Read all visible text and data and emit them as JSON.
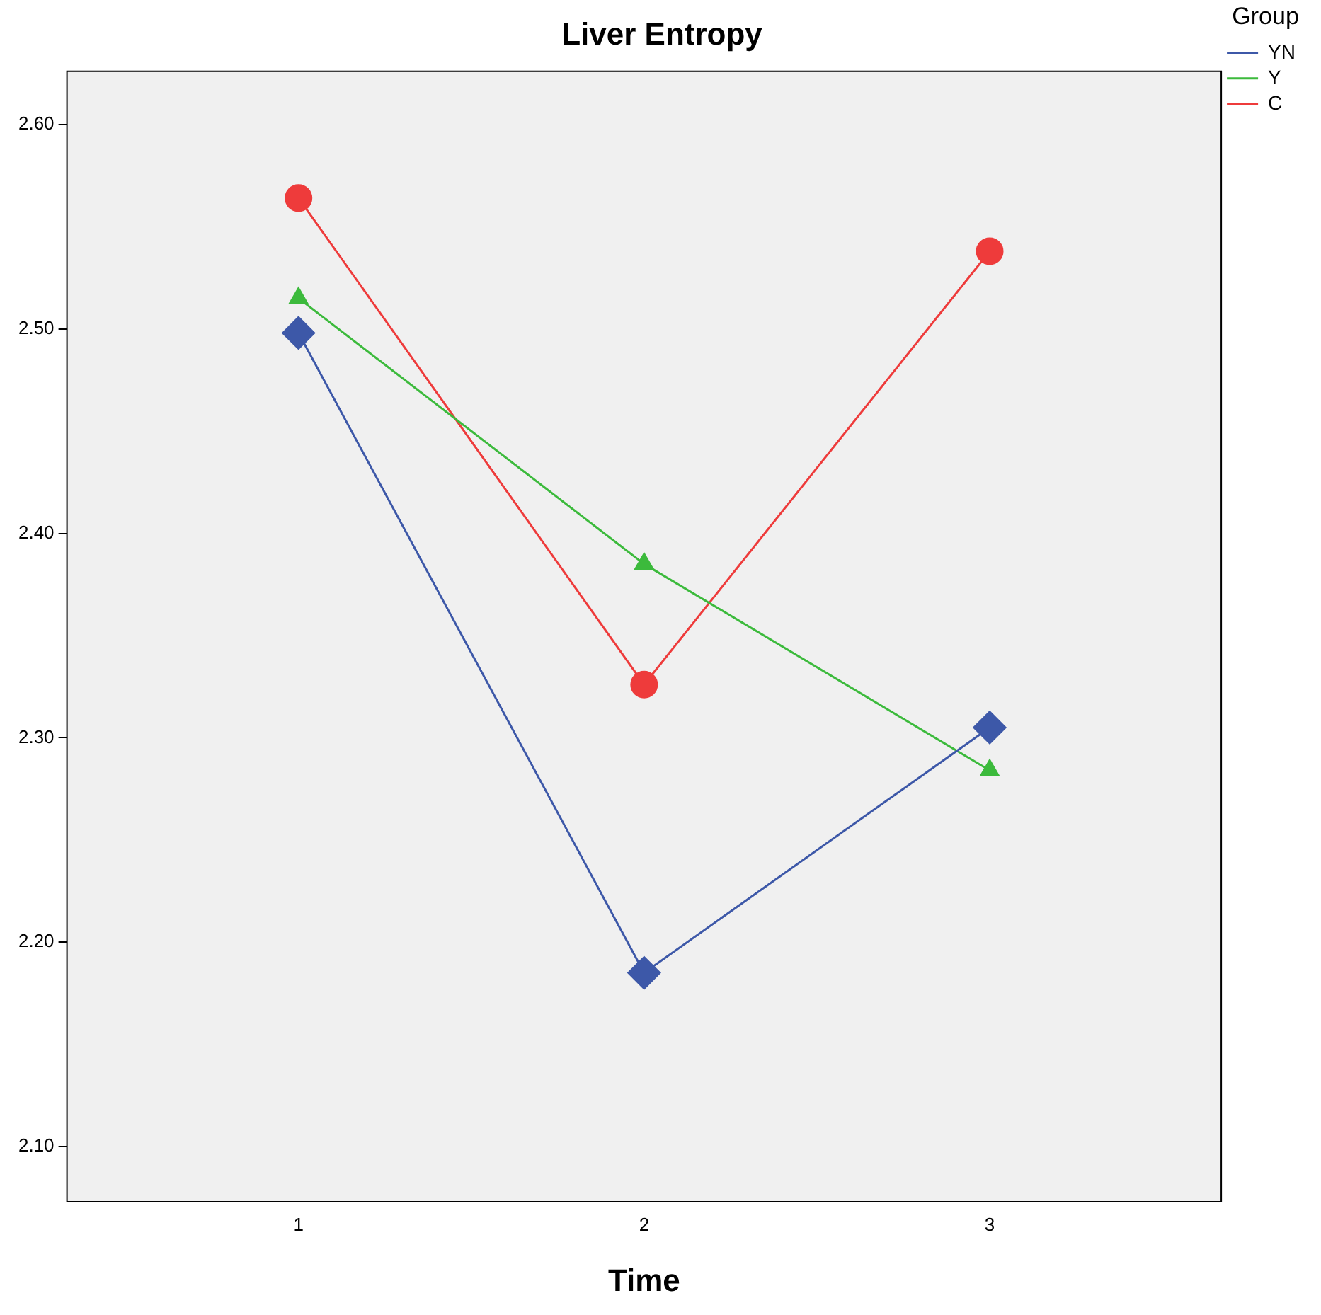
{
  "chart_data": {
    "type": "line",
    "title": "Liver Entropy",
    "xlabel": "Time",
    "legend_title": "Group",
    "legend": "top right",
    "grid": false,
    "x": [
      1,
      2,
      3
    ],
    "xlim": [
      0.33,
      3.67
    ],
    "xticks": [
      1,
      2,
      3
    ],
    "ylim": [
      2.073,
      2.626
    ],
    "yticks": [
      {
        "value": 2.1,
        "label": "2.10"
      },
      {
        "value": 2.2,
        "label": "2.20"
      },
      {
        "value": 2.3,
        "label": "2.30"
      },
      {
        "value": 2.4,
        "label": "2.40"
      },
      {
        "value": 2.5,
        "label": "2.50"
      },
      {
        "value": 2.6,
        "label": "2.60"
      }
    ],
    "series": [
      {
        "name": "YN",
        "color": "#3d58a8",
        "marker": "diamond",
        "values": [
          2.498,
          2.185,
          2.305
        ]
      },
      {
        "name": "Y",
        "color": "#3cba3c",
        "marker": "triangle",
        "values": [
          2.515,
          2.385,
          2.284
        ]
      },
      {
        "name": "C",
        "color": "#ee3b3b",
        "marker": "circle",
        "values": [
          2.564,
          2.326,
          2.538
        ]
      }
    ]
  }
}
